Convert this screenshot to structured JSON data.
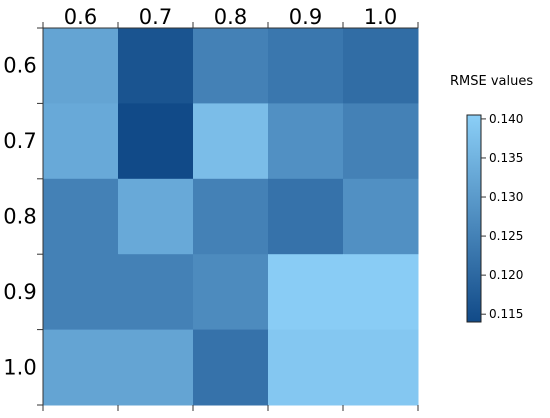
{
  "chart_data": {
    "type": "heatmap",
    "title": "",
    "x_categories": [
      "0.6",
      "0.7",
      "0.8",
      "0.9",
      "1.0"
    ],
    "y_categories": [
      "0.6",
      "0.7",
      "0.8",
      "0.9",
      "1.0"
    ],
    "values": [
      [
        0.132,
        0.116,
        0.125,
        0.123,
        0.121
      ],
      [
        0.133,
        0.114,
        0.137,
        0.128,
        0.125
      ],
      [
        0.125,
        0.133,
        0.125,
        0.122,
        0.128
      ],
      [
        0.125,
        0.125,
        0.127,
        0.14,
        0.14
      ],
      [
        0.132,
        0.132,
        0.122,
        0.139,
        0.139
      ]
    ],
    "legend": {
      "title": "RMSE values",
      "ticks": [
        "0.115",
        "0.120",
        "0.125",
        "0.130",
        "0.135",
        "0.140"
      ],
      "min": 0.114,
      "max": 0.1405,
      "low_color": "#114A88",
      "high_color": "#8BCFF7",
      "placement": "right"
    },
    "x_axis_position": "top",
    "grid": false
  }
}
